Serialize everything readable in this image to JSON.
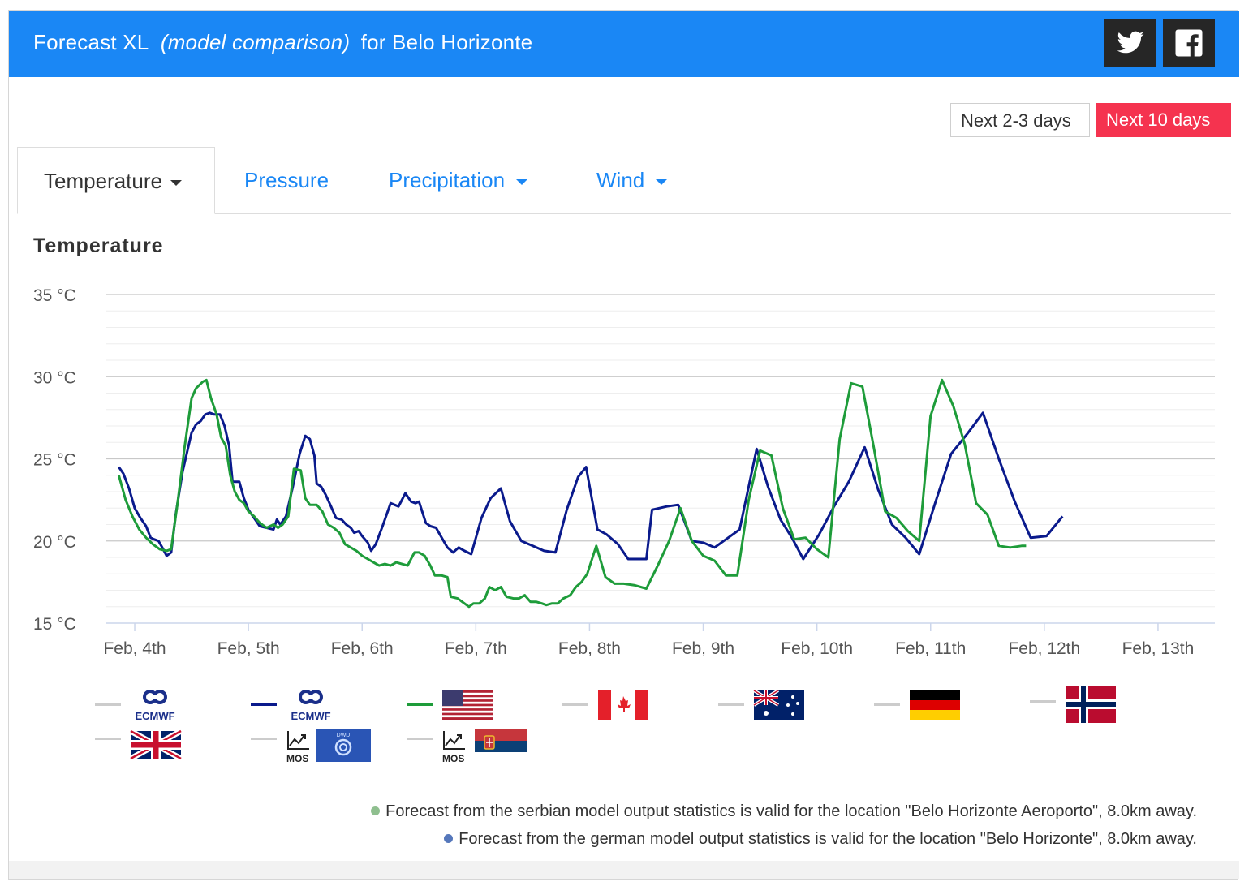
{
  "header": {
    "title_main": "Forecast XL",
    "title_italic": "(model comparison)",
    "title_location": "for Belo Horizonte",
    "twitter_icon": "twitter-icon",
    "facebook_icon": "facebook-icon"
  },
  "range": {
    "short_label": "Next 2-3 days",
    "long_label": "Next 10 days"
  },
  "tabs": [
    {
      "label": "Temperature"
    },
    {
      "label": "Pressure"
    },
    {
      "label": "Precipitation"
    },
    {
      "label": "Wind"
    }
  ],
  "colors": {
    "header": "#1a87f5",
    "accent": "#1a87f5",
    "active_range": "#f5334f",
    "green_series": "#1e9c3a",
    "navy_series": "#0a1a8c",
    "disabled_series": "#cccccc"
  },
  "legend": [
    {
      "icon": "ecmwf-logo-icon",
      "text": "ECMWF",
      "line": "#cccccc"
    },
    {
      "icon": "ecmwf-logo-icon",
      "text": "ECMWF",
      "line": "#0a1a8c"
    },
    {
      "icon": "usa-flag-icon",
      "line": "#1e9c3a"
    },
    {
      "icon": "canada-flag-icon",
      "line": "#cccccc"
    },
    {
      "icon": "australia-flag-icon",
      "line": "#cccccc"
    },
    {
      "icon": "germany-flag-icon",
      "line": "#cccccc"
    },
    {
      "icon": "norway-flag-icon",
      "line": "#cccccc"
    },
    {
      "icon": "uk-flag-icon",
      "line": "#cccccc"
    },
    {
      "icon": "mos-dwd-icon",
      "text": "MOS",
      "badge": "DWD",
      "line": "#cccccc"
    },
    {
      "icon": "mos-serbia-icon",
      "text": "MOS",
      "line": "#cccccc"
    }
  ],
  "notes": [
    {
      "text": "Forecast from the serbian model output statistics is valid for the location \"Belo Horizonte Aeroporto\", 8.0km away.",
      "dot_color": "#8fbf8f"
    },
    {
      "text": "Forecast from the german model output statistics is valid for the location \"Belo Horizonte\", 8.0km away.",
      "dot_color": "#5577bb"
    }
  ],
  "chart_data": {
    "type": "line",
    "title": "Temperature",
    "y_unit": "°C",
    "ylim": [
      15,
      35
    ],
    "y_ticks": [
      15,
      20,
      25,
      30,
      35
    ],
    "y_tick_labels": [
      "15 °C",
      "20 °C",
      "25 °C",
      "30 °C",
      "35 °C"
    ],
    "x_range": [
      3.75,
      13.5
    ],
    "x_ticks": [
      4,
      5,
      6,
      7,
      8,
      9,
      10,
      11,
      12,
      13
    ],
    "x_tick_labels": [
      "Feb, 4th",
      "Feb, 5th",
      "Feb, 6th",
      "Feb, 7th",
      "Feb, 8th",
      "Feb, 9th",
      "Feb, 10th",
      "Feb, 11th",
      "Feb, 12th",
      "Feb, 13th"
    ],
    "grid": true,
    "series": [
      {
        "color": "#0a1a8c",
        "points": [
          [
            3.86,
            24.5
          ],
          [
            3.9,
            24.1
          ],
          [
            3.95,
            23.2
          ],
          [
            4.0,
            22.0
          ],
          [
            4.05,
            21.4
          ],
          [
            4.1,
            20.9
          ],
          [
            4.14,
            20.2
          ],
          [
            4.17,
            20.1
          ],
          [
            4.21,
            20.0
          ],
          [
            4.25,
            19.5
          ],
          [
            4.28,
            19.1
          ],
          [
            4.32,
            19.3
          ],
          [
            4.36,
            21.6
          ],
          [
            4.42,
            24.2
          ],
          [
            4.5,
            26.6
          ],
          [
            4.54,
            27.1
          ],
          [
            4.58,
            27.3
          ],
          [
            4.62,
            27.7
          ],
          [
            4.66,
            27.8
          ],
          [
            4.7,
            27.7
          ],
          [
            4.75,
            27.7
          ],
          [
            4.79,
            27.0
          ],
          [
            4.83,
            25.8
          ],
          [
            4.86,
            23.6
          ],
          [
            4.92,
            23.6
          ],
          [
            4.96,
            22.6
          ],
          [
            5.0,
            21.9
          ],
          [
            5.06,
            21.3
          ],
          [
            5.1,
            20.9
          ],
          [
            5.16,
            20.8
          ],
          [
            5.22,
            20.7
          ],
          [
            5.25,
            21.3
          ],
          [
            5.28,
            21.0
          ],
          [
            5.33,
            21.5
          ],
          [
            5.39,
            23.3
          ],
          [
            5.45,
            25.3
          ],
          [
            5.5,
            26.4
          ],
          [
            5.54,
            26.2
          ],
          [
            5.58,
            25.2
          ],
          [
            5.6,
            23.5
          ],
          [
            5.64,
            23.3
          ],
          [
            5.68,
            22.8
          ],
          [
            5.72,
            22.2
          ],
          [
            5.77,
            21.4
          ],
          [
            5.82,
            21.3
          ],
          [
            5.86,
            21.0
          ],
          [
            5.9,
            20.8
          ],
          [
            5.93,
            20.5
          ],
          [
            5.97,
            20.6
          ],
          [
            6.0,
            20.3
          ],
          [
            6.05,
            19.9
          ],
          [
            6.08,
            19.4
          ],
          [
            6.12,
            19.8
          ],
          [
            6.18,
            20.9
          ],
          [
            6.25,
            22.3
          ],
          [
            6.32,
            22.1
          ],
          [
            6.38,
            22.9
          ],
          [
            6.43,
            22.4
          ],
          [
            6.47,
            22.3
          ],
          [
            6.5,
            22.4
          ],
          [
            6.56,
            21.1
          ],
          [
            6.6,
            20.9
          ],
          [
            6.65,
            20.8
          ],
          [
            6.7,
            20.2
          ],
          [
            6.75,
            19.6
          ],
          [
            6.8,
            19.3
          ],
          [
            6.85,
            19.6
          ],
          [
            6.9,
            19.4
          ],
          [
            6.96,
            19.2
          ],
          [
            7.05,
            21.4
          ],
          [
            7.13,
            22.6
          ],
          [
            7.22,
            23.2
          ],
          [
            7.3,
            21.2
          ],
          [
            7.4,
            20.0
          ],
          [
            7.5,
            19.7
          ],
          [
            7.6,
            19.4
          ],
          [
            7.7,
            19.3
          ],
          [
            7.8,
            21.9
          ],
          [
            7.9,
            23.9
          ],
          [
            7.97,
            24.5
          ],
          [
            8.07,
            20.7
          ],
          [
            8.15,
            20.4
          ],
          [
            8.25,
            19.8
          ],
          [
            8.34,
            18.9
          ],
          [
            8.42,
            18.9
          ],
          [
            8.5,
            18.9
          ],
          [
            8.55,
            21.9
          ],
          [
            8.68,
            22.1
          ],
          [
            8.78,
            22.2
          ],
          [
            8.9,
            20.0
          ],
          [
            9.0,
            19.9
          ],
          [
            9.1,
            19.6
          ],
          [
            9.2,
            20.1
          ],
          [
            9.32,
            20.7
          ],
          [
            9.47,
            25.6
          ],
          [
            9.57,
            23.3
          ],
          [
            9.68,
            21.3
          ],
          [
            9.78,
            20.2
          ],
          [
            9.88,
            18.9
          ],
          [
            10.02,
            20.4
          ],
          [
            10.15,
            22.1
          ],
          [
            10.28,
            23.6
          ],
          [
            10.42,
            25.7
          ],
          [
            10.54,
            23.1
          ],
          [
            10.66,
            21.0
          ],
          [
            10.78,
            20.2
          ],
          [
            10.9,
            19.2
          ],
          [
            11.04,
            22.3
          ],
          [
            11.18,
            25.3
          ],
          [
            11.32,
            26.5
          ],
          [
            11.46,
            27.8
          ],
          [
            11.6,
            25.0
          ],
          [
            11.74,
            22.4
          ],
          [
            11.88,
            20.2
          ],
          [
            12.02,
            20.3
          ],
          [
            12.16,
            21.5
          ]
        ]
      },
      {
        "color": "#1e9c3a",
        "points": [
          [
            3.86,
            24.0
          ],
          [
            3.92,
            22.5
          ],
          [
            3.98,
            21.5
          ],
          [
            4.04,
            20.7
          ],
          [
            4.1,
            20.2
          ],
          [
            4.16,
            19.8
          ],
          [
            4.22,
            19.5
          ],
          [
            4.28,
            19.4
          ],
          [
            4.32,
            19.5
          ],
          [
            4.38,
            22.5
          ],
          [
            4.44,
            25.8
          ],
          [
            4.5,
            28.7
          ],
          [
            4.54,
            29.3
          ],
          [
            4.6,
            29.7
          ],
          [
            4.63,
            29.8
          ],
          [
            4.67,
            28.7
          ],
          [
            4.72,
            27.7
          ],
          [
            4.76,
            26.3
          ],
          [
            4.8,
            25.8
          ],
          [
            4.84,
            24.0
          ],
          [
            4.88,
            23.0
          ],
          [
            4.92,
            22.5
          ],
          [
            4.96,
            22.3
          ],
          [
            5.0,
            21.8
          ],
          [
            5.05,
            21.5
          ],
          [
            5.1,
            21.1
          ],
          [
            5.16,
            20.8
          ],
          [
            5.22,
            21.0
          ],
          [
            5.26,
            20.8
          ],
          [
            5.3,
            21.0
          ],
          [
            5.35,
            21.5
          ],
          [
            5.4,
            24.4
          ],
          [
            5.46,
            24.3
          ],
          [
            5.5,
            22.6
          ],
          [
            5.54,
            22.2
          ],
          [
            5.6,
            22.2
          ],
          [
            5.65,
            21.8
          ],
          [
            5.7,
            21.0
          ],
          [
            5.75,
            20.8
          ],
          [
            5.8,
            20.5
          ],
          [
            5.85,
            19.8
          ],
          [
            5.9,
            19.6
          ],
          [
            5.95,
            19.4
          ],
          [
            6.0,
            19.1
          ],
          [
            6.05,
            18.9
          ],
          [
            6.1,
            18.7
          ],
          [
            6.15,
            18.5
          ],
          [
            6.2,
            18.6
          ],
          [
            6.25,
            18.5
          ],
          [
            6.3,
            18.7
          ],
          [
            6.35,
            18.6
          ],
          [
            6.4,
            18.5
          ],
          [
            6.46,
            19.3
          ],
          [
            6.5,
            19.3
          ],
          [
            6.55,
            19.1
          ],
          [
            6.6,
            18.5
          ],
          [
            6.64,
            17.9
          ],
          [
            6.7,
            17.9
          ],
          [
            6.75,
            17.8
          ],
          [
            6.78,
            16.6
          ],
          [
            6.84,
            16.5
          ],
          [
            6.88,
            16.3
          ],
          [
            6.94,
            16.0
          ],
          [
            6.98,
            16.2
          ],
          [
            7.03,
            16.2
          ],
          [
            7.08,
            16.5
          ],
          [
            7.12,
            17.2
          ],
          [
            7.17,
            17.0
          ],
          [
            7.22,
            17.2
          ],
          [
            7.27,
            16.6
          ],
          [
            7.33,
            16.5
          ],
          [
            7.38,
            16.5
          ],
          [
            7.43,
            16.7
          ],
          [
            7.48,
            16.3
          ],
          [
            7.53,
            16.3
          ],
          [
            7.58,
            16.2
          ],
          [
            7.62,
            16.1
          ],
          [
            7.67,
            16.2
          ],
          [
            7.72,
            16.2
          ],
          [
            7.77,
            16.5
          ],
          [
            7.83,
            16.7
          ],
          [
            7.88,
            17.2
          ],
          [
            7.93,
            17.5
          ],
          [
            7.98,
            18.0
          ],
          [
            8.06,
            19.7
          ],
          [
            8.14,
            17.8
          ],
          [
            8.22,
            17.4
          ],
          [
            8.3,
            17.4
          ],
          [
            8.4,
            17.3
          ],
          [
            8.5,
            17.1
          ],
          [
            8.6,
            18.5
          ],
          [
            8.7,
            20.0
          ],
          [
            8.8,
            22.0
          ],
          [
            8.9,
            20.0
          ],
          [
            9.0,
            19.1
          ],
          [
            9.1,
            18.8
          ],
          [
            9.2,
            17.9
          ],
          [
            9.3,
            17.9
          ],
          [
            9.4,
            22.5
          ],
          [
            9.5,
            25.5
          ],
          [
            9.6,
            25.2
          ],
          [
            9.7,
            22.0
          ],
          [
            9.8,
            20.1
          ],
          [
            9.9,
            20.2
          ],
          [
            10.0,
            19.5
          ],
          [
            10.1,
            19.0
          ],
          [
            10.2,
            26.2
          ],
          [
            10.3,
            29.6
          ],
          [
            10.4,
            29.4
          ],
          [
            10.5,
            25.7
          ],
          [
            10.6,
            21.8
          ],
          [
            10.7,
            21.4
          ],
          [
            10.8,
            20.6
          ],
          [
            10.9,
            20.0
          ],
          [
            11.0,
            27.6
          ],
          [
            11.1,
            29.8
          ],
          [
            11.2,
            28.2
          ],
          [
            11.3,
            25.9
          ],
          [
            11.4,
            22.3
          ],
          [
            11.5,
            21.6
          ],
          [
            11.6,
            19.7
          ],
          [
            11.7,
            19.6
          ],
          [
            11.8,
            19.7
          ],
          [
            11.84,
            19.7
          ]
        ]
      }
    ]
  }
}
